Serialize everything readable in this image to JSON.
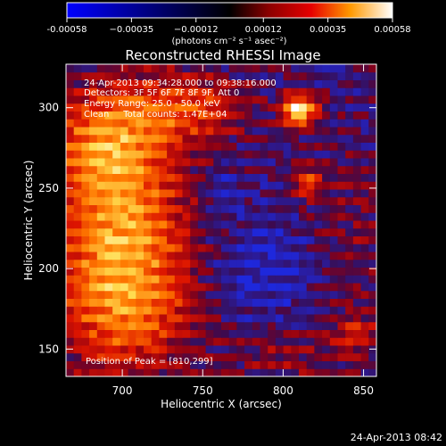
{
  "chart_data": {
    "type": "heatmap",
    "title": "Reconstructed RHESSI Image",
    "xlabel": "Heliocentric X (arcsec)",
    "ylabel": "Heliocentric Y (arcsec)",
    "xlim": [
      665,
      858
    ],
    "ylim": [
      133,
      327
    ],
    "x_ticks": [
      700,
      750,
      800,
      850
    ],
    "y_ticks": [
      150,
      200,
      250,
      300
    ],
    "colorbar": {
      "range": [
        -0.00058,
        0.00058
      ],
      "tick_values": [
        -0.00058,
        -0.00035,
        -0.00012,
        0.00012,
        0.00035,
        0.00058
      ],
      "tick_labels": [
        "-0.00058",
        "−0.00035",
        "−0.00012",
        "0.00012",
        "0.00035",
        "0.00058"
      ],
      "units": "(photons cm⁻² s⁻¹ asec⁻²)"
    },
    "annotations": [
      "24-Apr-2013 09:34:28.000 to 09:38:16.000",
      "Detectors: 3F 5F 6F 7F 8F 9F, Att 0",
      "Energy Range: 25.0 - 50.0 keV",
      "Clean     Total counts: 1.47E+04"
    ],
    "peak_label": "Position of Peak = [810,299]",
    "peak": [
      810,
      299
    ],
    "timestamp": "24-Apr-2013 08:42",
    "grid": {
      "rows": 40,
      "cols": 40,
      "x_range": [
        665,
        858
      ],
      "y_range": [
        133,
        327
      ],
      "components": [
        {
          "x": 810,
          "y": 299,
          "sx": 7,
          "sy": 7,
          "amp": 1.0
        },
        {
          "x": 815,
          "y": 254,
          "sx": 6,
          "sy": 6,
          "amp": 0.55
        },
        {
          "x": 690,
          "y": 280,
          "sx": 25,
          "sy": 25,
          "amp": 0.55
        },
        {
          "x": 700,
          "y": 230,
          "sx": 28,
          "sy": 35,
          "amp": 0.6
        },
        {
          "x": 700,
          "y": 175,
          "sx": 30,
          "sy": 30,
          "amp": 0.55
        },
        {
          "x": 740,
          "y": 300,
          "sx": 25,
          "sy": 15,
          "amp": 0.45
        },
        {
          "x": 760,
          "y": 250,
          "sx": 10,
          "sy": 10,
          "amp": -0.15
        },
        {
          "x": 790,
          "y": 200,
          "sx": 25,
          "sy": 25,
          "amp": -0.2
        },
        {
          "x": 840,
          "y": 225,
          "sx": 20,
          "sy": 35,
          "amp": 0.15
        },
        {
          "x": 800,
          "y": 145,
          "sx": 25,
          "sy": 12,
          "amp": 0.2
        },
        {
          "x": 845,
          "y": 160,
          "sx": 12,
          "sy": 10,
          "amp": 0.3
        }
      ]
    }
  }
}
